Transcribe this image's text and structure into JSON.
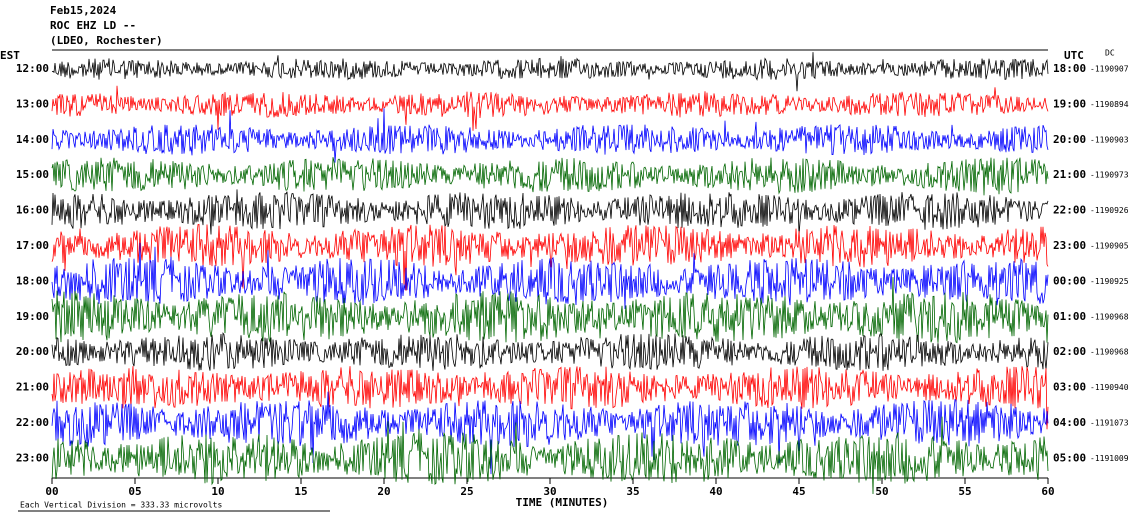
{
  "header": {
    "date": "Feb15,2024",
    "station": "ROC EHZ LD --",
    "location": "(LDEO, Rochester)"
  },
  "left_axis": {
    "title": "EST",
    "labels": [
      "12:00",
      "13:00",
      "14:00",
      "15:00",
      "16:00",
      "17:00",
      "18:00",
      "19:00",
      "20:00",
      "21:00",
      "22:00",
      "23:00"
    ]
  },
  "right_axis": {
    "title": "UTC",
    "dc_title": "DC",
    "labels": [
      "18:00",
      "19:00",
      "20:00",
      "21:00",
      "22:00",
      "23:00",
      "00:00",
      "01:00",
      "02:00",
      "03:00",
      "04:00",
      "05:00"
    ],
    "dc_offsets": [
      "-1190907",
      "-1190894",
      "-1190903",
      "-1190973",
      "-1190926",
      "-1190905",
      "-1190925",
      "-1190968",
      "-1190968",
      "-1190940",
      "-1191073",
      "-1191009"
    ]
  },
  "x_axis": {
    "title": "TIME (MINUTES)",
    "labels": [
      "00",
      "05",
      "10",
      "15",
      "20",
      "25",
      "30",
      "35",
      "40",
      "45",
      "50",
      "55",
      "60"
    ]
  },
  "footer": "Each Vertical Division =  333.33 microvolts"
}
